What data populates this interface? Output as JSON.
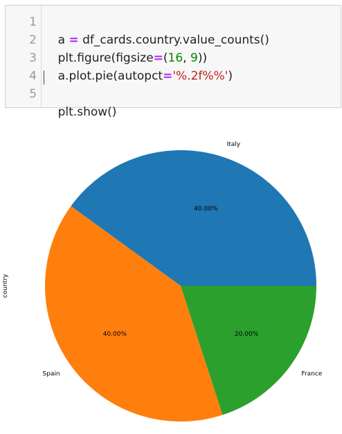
{
  "code_cell": {
    "lines": [
      {
        "number": "1",
        "tokens": [
          {
            "text": "a ",
            "kind": "plain"
          },
          {
            "text": "=",
            "kind": "op"
          },
          {
            "text": " df_cards.country.value_counts()",
            "kind": "plain"
          }
        ]
      },
      {
        "number": "2",
        "tokens": [
          {
            "text": "plt.figure(figsize",
            "kind": "plain"
          },
          {
            "text": "=",
            "kind": "op"
          },
          {
            "text": "(",
            "kind": "plain"
          },
          {
            "text": "16",
            "kind": "num"
          },
          {
            "text": ", ",
            "kind": "plain"
          },
          {
            "text": "9",
            "kind": "num"
          },
          {
            "text": "))",
            "kind": "plain"
          }
        ]
      },
      {
        "number": "3",
        "tokens": [
          {
            "text": "a.plot.pie(autopct",
            "kind": "plain"
          },
          {
            "text": "=",
            "kind": "op"
          },
          {
            "text": "'%.2f%%'",
            "kind": "str"
          },
          {
            "text": ")",
            "kind": "plain"
          }
        ]
      },
      {
        "number": "4",
        "tokens": []
      },
      {
        "number": "5",
        "tokens": [
          {
            "text": "plt.show()",
            "kind": "plain"
          }
        ]
      }
    ]
  },
  "chart_data": {
    "type": "pie",
    "title": "",
    "ylabel": "country",
    "start_angle_deg": 0,
    "direction": "counterclockwise",
    "slices": [
      {
        "label": "Italy",
        "value": 40.0,
        "pct_label": "40.00%",
        "color": "#1f77b4"
      },
      {
        "label": "Spain",
        "value": 40.0,
        "pct_label": "40.00%",
        "color": "#ff7f0e"
      },
      {
        "label": "France",
        "value": 20.0,
        "pct_label": "20.00%",
        "color": "#2ca02c"
      }
    ]
  }
}
